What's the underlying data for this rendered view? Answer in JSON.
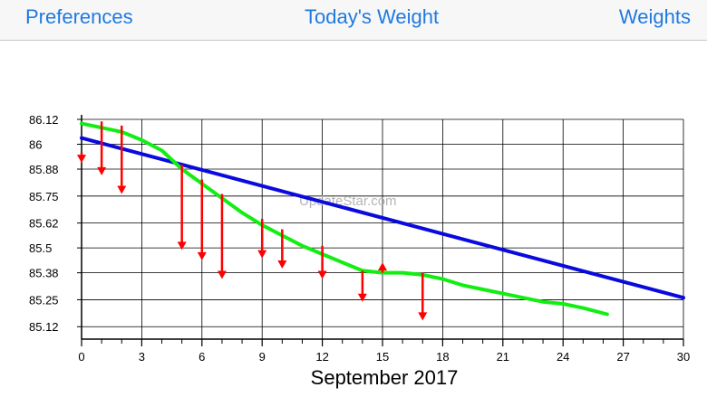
{
  "navbar": {
    "left_label": "Preferences",
    "title": "Today's Weight",
    "right_label": "Weights"
  },
  "watermark": "UpdateStar.com",
  "chart_data": {
    "type": "line",
    "title": "",
    "xlabel": "September 2017",
    "ylabel": "",
    "xlim": [
      0,
      30
    ],
    "ylim": [
      85.06,
      86.12
    ],
    "x_ticks": [
      0,
      3,
      6,
      9,
      12,
      15,
      18,
      21,
      24,
      27,
      30
    ],
    "x_tick_labels": [
      "0",
      "3",
      "6",
      "9",
      "12",
      "15",
      "18",
      "21",
      "24",
      "27",
      "30"
    ],
    "y_ticks": [
      86.12,
      86.0,
      85.88,
      85.75,
      85.62,
      85.5,
      85.38,
      85.25,
      85.12
    ],
    "y_tick_labels": [
      "86.12",
      "86",
      "85.88",
      "85.75",
      "85.62",
      "85.5",
      "85.38",
      "85.25",
      "85.12"
    ],
    "x_minor_ticks": [
      1,
      2,
      4,
      5,
      7,
      8,
      10,
      11,
      13,
      14,
      16,
      17,
      19,
      20,
      22,
      23,
      25,
      26,
      28,
      29
    ],
    "grid": true,
    "series": [
      {
        "color": "#0a0adf",
        "x": [
          0,
          30
        ],
        "y": [
          86.03,
          85.26
        ]
      },
      {
        "color": "#12ee12",
        "x": [
          0,
          1,
          2,
          3,
          4,
          5,
          6,
          7,
          8,
          9,
          10,
          11,
          12,
          13,
          14,
          15,
          16,
          17,
          18,
          19,
          20,
          21,
          22,
          23,
          24,
          25,
          26.2
        ],
        "y": [
          86.1,
          86.08,
          86.06,
          86.02,
          85.97,
          85.88,
          85.81,
          85.74,
          85.67,
          85.61,
          85.56,
          85.51,
          85.47,
          85.43,
          85.39,
          85.38,
          85.38,
          85.37,
          85.35,
          85.32,
          85.3,
          85.28,
          85.26,
          85.24,
          85.23,
          85.21,
          85.18
        ]
      }
    ],
    "arrows": {
      "color": "#ff0000",
      "items": [
        {
          "x": 0,
          "from": 85.96,
          "to": 85.91
        },
        {
          "x": 1,
          "from": 86.11,
          "to": 85.85
        },
        {
          "x": 2,
          "from": 86.09,
          "to": 85.76
        },
        {
          "x": 5,
          "from": 85.9,
          "to": 85.49
        },
        {
          "x": 6,
          "from": 85.83,
          "to": 85.44
        },
        {
          "x": 7,
          "from": 85.76,
          "to": 85.35
        },
        {
          "x": 9,
          "from": 85.64,
          "to": 85.45
        },
        {
          "x": 10,
          "from": 85.59,
          "to": 85.4
        },
        {
          "x": 12,
          "from": 85.51,
          "to": 85.35
        },
        {
          "x": 14,
          "from": 85.39,
          "to": 85.24
        },
        {
          "x": 15,
          "from": 85.38,
          "to": 85.43
        },
        {
          "x": 17,
          "from": 85.38,
          "to": 85.15
        }
      ]
    }
  }
}
